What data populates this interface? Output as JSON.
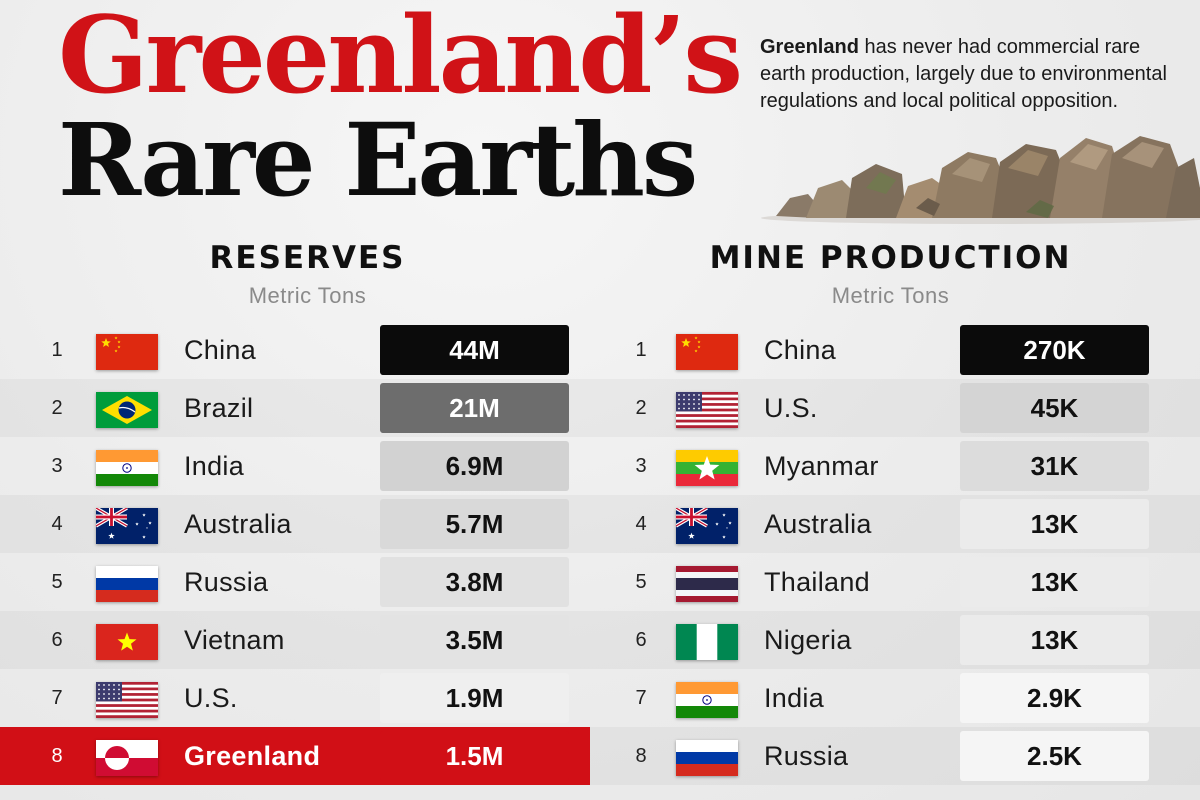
{
  "title": {
    "line1": "Greenland’s",
    "line2": "Rare Earths"
  },
  "intro": {
    "bold": "Greenland",
    "rest": " has never had commercial rare earth production, largely due to environmental regulations and local political opposition."
  },
  "colors": {
    "accent_red": "#d01217",
    "highlight_row": "#d10f16"
  },
  "chart_data": [
    {
      "type": "table",
      "title": "RESERVES",
      "subtitle": "Metric Tons",
      "rows": [
        {
          "rank": "1",
          "country": "China",
          "flag": "china-flag",
          "value_label": "44M",
          "value": 44000000,
          "fill": "#0b0b0b",
          "text_color": "#ffffff"
        },
        {
          "rank": "2",
          "country": "Brazil",
          "flag": "brazil-flag",
          "value_label": "21M",
          "value": 21000000,
          "fill": "#6d6d6d",
          "text_color": "#ffffff"
        },
        {
          "rank": "3",
          "country": "India",
          "flag": "india-flag",
          "value_label": "6.9M",
          "value": 6900000,
          "fill": "#d2d2d2",
          "text_color": "#111111"
        },
        {
          "rank": "4",
          "country": "Australia",
          "flag": "australia-flag",
          "value_label": "5.7M",
          "value": 5700000,
          "fill": "#d9d9d9",
          "text_color": "#111111"
        },
        {
          "rank": "5",
          "country": "Russia",
          "flag": "russia-flag",
          "value_label": "3.8M",
          "value": 3800000,
          "fill": "#e1e1e1",
          "text_color": "#111111"
        },
        {
          "rank": "6",
          "country": "Vietnam",
          "flag": "vietnam-flag",
          "value_label": "3.5M",
          "value": 3500000,
          "fill": "#e3e3e3",
          "text_color": "#111111"
        },
        {
          "rank": "7",
          "country": "U.S.",
          "flag": "us-flag",
          "value_label": "1.9M",
          "value": 1900000,
          "fill": "#efefef",
          "text_color": "#111111"
        },
        {
          "rank": "8",
          "country": "Greenland",
          "flag": "greenland-flag",
          "value_label": "1.5M",
          "value": 1500000,
          "fill": "#d10f16",
          "text_color": "#ffffff",
          "highlight": true
        }
      ]
    },
    {
      "type": "table",
      "title": "MINE PRODUCTION",
      "subtitle": "Metric Tons",
      "rows": [
        {
          "rank": "1",
          "country": "China",
          "flag": "china-flag",
          "value_label": "270K",
          "value": 270000,
          "fill": "#0b0b0b",
          "text_color": "#ffffff"
        },
        {
          "rank": "2",
          "country": "U.S.",
          "flag": "us-flag",
          "value_label": "45K",
          "value": 45000,
          "fill": "#d4d4d4",
          "text_color": "#111111"
        },
        {
          "rank": "3",
          "country": "Myanmar",
          "flag": "myanmar-flag",
          "value_label": "31K",
          "value": 31000,
          "fill": "#dcdcdc",
          "text_color": "#111111"
        },
        {
          "rank": "4",
          "country": "Australia",
          "flag": "australia-flag",
          "value_label": "13K",
          "value": 13000,
          "fill": "#ebebeb",
          "text_color": "#111111"
        },
        {
          "rank": "5",
          "country": "Thailand",
          "flag": "thailand-flag",
          "value_label": "13K",
          "value": 13000,
          "fill": "#ebebeb",
          "text_color": "#111111"
        },
        {
          "rank": "6",
          "country": "Nigeria",
          "flag": "nigeria-flag",
          "value_label": "13K",
          "value": 13000,
          "fill": "#ebebeb",
          "text_color": "#111111"
        },
        {
          "rank": "7",
          "country": "India",
          "flag": "india-flag",
          "value_label": "2.9K",
          "value": 2900,
          "fill": "#f5f5f5",
          "text_color": "#111111"
        },
        {
          "rank": "8",
          "country": "Russia",
          "flag": "russia-flag",
          "value_label": "2.5K",
          "value": 2500,
          "fill": "#f5f5f5",
          "text_color": "#111111"
        }
      ]
    }
  ]
}
